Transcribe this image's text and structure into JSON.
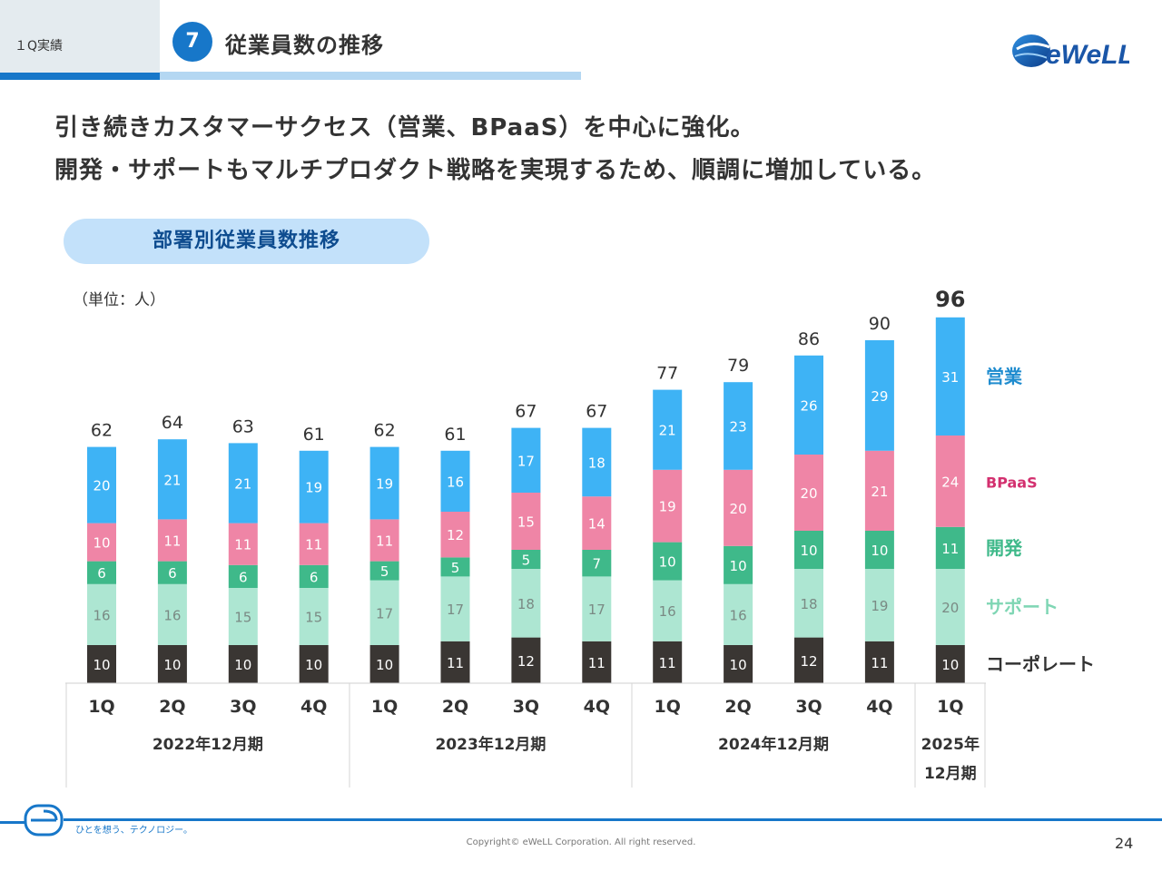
{
  "header": {
    "section_tag": "１Q実績",
    "section_number": "7",
    "section_title": "従業員数の推移",
    "logo_text": "eWeLL"
  },
  "lead": {
    "line1": "引き続きカスタマーサクセス（営業、BPaaS）を中心に強化。",
    "line2": "開発・サポートもマルチプロダクト戦略を実現するため、順調に増加している。"
  },
  "chart_title": "部署別従業員数推移",
  "unit_label": "（単位：人）",
  "colors": {
    "accent": "#1777c9",
    "sales": "#3eb3f5",
    "bpaas": "#ef85a6",
    "dev": "#3fb98a",
    "support": "#ade6d2",
    "corporate": "#3a3633",
    "sales_label": "#1f8ccf",
    "bpaas_label": "#d3306f",
    "dev_label": "#3fb98a",
    "support_label": "#7fd6b4",
    "corporate_label": "#333333"
  },
  "chart_data": {
    "type": "bar",
    "stacked": true,
    "categories": [
      "1Q",
      "2Q",
      "3Q",
      "4Q",
      "1Q",
      "2Q",
      "3Q",
      "4Q",
      "1Q",
      "2Q",
      "3Q",
      "4Q",
      "1Q"
    ],
    "periods": [
      {
        "label": "2022年12月期",
        "count": 4
      },
      {
        "label": "2023年12月期",
        "count": 4
      },
      {
        "label": "2024年12月期",
        "count": 4
      },
      {
        "label": "2025年\n12月期",
        "count": 1
      }
    ],
    "series": [
      {
        "name": "コーポレート",
        "color": "#3a3633",
        "label_color": "#ffffff",
        "legend_color": "#333333",
        "values": [
          10,
          10,
          10,
          10,
          10,
          11,
          12,
          11,
          11,
          10,
          12,
          11,
          10
        ]
      },
      {
        "name": "サポート",
        "color": "#ade6d2",
        "label_color": "#7a8a84",
        "legend_color": "#7fd6b4",
        "values": [
          16,
          16,
          15,
          15,
          17,
          17,
          18,
          17,
          16,
          16,
          18,
          19,
          20
        ]
      },
      {
        "name": "開発",
        "color": "#3fb98a",
        "label_color": "#ffffff",
        "legend_color": "#3fb98a",
        "values": [
          6,
          6,
          6,
          6,
          5,
          5,
          5,
          7,
          10,
          10,
          10,
          10,
          11
        ]
      },
      {
        "name": "BPaaS",
        "color": "#ef85a6",
        "label_color": "#ffffff",
        "legend_color": "#d3306f",
        "values": [
          10,
          11,
          11,
          11,
          11,
          12,
          15,
          14,
          19,
          20,
          20,
          21,
          24
        ]
      },
      {
        "name": "営業",
        "color": "#3eb3f5",
        "label_color": "#ffffff",
        "legend_color": "#1f8ccf",
        "values": [
          20,
          21,
          21,
          19,
          19,
          16,
          17,
          18,
          21,
          23,
          26,
          29,
          31
        ]
      }
    ],
    "totals": [
      62,
      64,
      63,
      61,
      62,
      61,
      67,
      67,
      77,
      79,
      86,
      90,
      96
    ],
    "highlight_last_total": true,
    "ylim": [
      0,
      100
    ],
    "grid": false,
    "legend_position": "right"
  },
  "footer": {
    "tagline": "ひとを想う、テクノロジー。",
    "copyright": "Copyright© eWeLL Corporation. All right reserved.",
    "page_number": "24"
  }
}
